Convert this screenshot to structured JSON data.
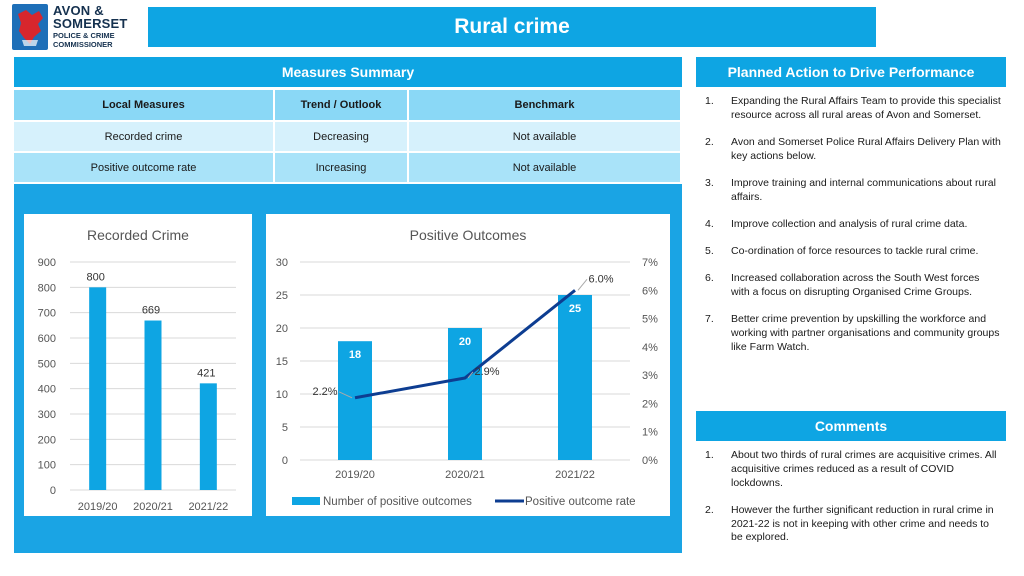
{
  "logo": {
    "line1": "AVON &",
    "line2": "SOMERSET",
    "line3": "POLICE & CRIME",
    "line4": "COMMISSIONER"
  },
  "page_title": "Rural crime",
  "measures": {
    "heading": "Measures Summary",
    "columns": [
      "Local Measures",
      "Trend / Outlook",
      "Benchmark"
    ],
    "rows": [
      [
        "Recorded crime",
        "Decreasing",
        "Not available"
      ],
      [
        "Positive outcome rate",
        "Increasing",
        "Not available"
      ]
    ]
  },
  "plan": {
    "heading": "Planned Action to Drive Performance",
    "items": [
      {
        "num": "1.",
        "text": "Expanding the Rural Affairs Team to provide this specialist resource across all rural areas of Avon and Somerset."
      },
      {
        "num": "2.",
        "text": "Avon and Somerset Police Rural Affairs Delivery Plan with key actions below."
      },
      {
        "num": "3.",
        "text": "Improve training and internal communications about rural affairs."
      },
      {
        "num": "4.",
        "text": "Improve collection and analysis of rural crime data."
      },
      {
        "num": "5.",
        "text": "Co-ordination of force resources to tackle rural crime."
      },
      {
        "num": "6.",
        "text": "Increased collaboration across the South West forces with a focus on disrupting Organised Crime Groups."
      },
      {
        "num": "7.",
        "text": "Better crime prevention by upskilling the workforce and working with partner organisations and community groups like Farm Watch."
      }
    ]
  },
  "comments": {
    "heading": "Comments",
    "items": [
      {
        "num": "1.",
        "text": "About two thirds of rural crimes are acquisitive crimes. All acquisitive crimes reduced as a result of COVID lockdowns."
      },
      {
        "num": "2.",
        "text": "However the further significant reduction in rural crime in 2021-22 is not in keeping with other crime and needs to be explored."
      }
    ]
  },
  "colors": {
    "accent": "#0ea5e3",
    "bar": "#0ea5e3",
    "line": "#0d3d91",
    "panel": "#1aa4e4"
  },
  "chart_data": [
    {
      "type": "bar",
      "title": "Recorded Crime",
      "categories": [
        "2019/20",
        "2020/21",
        "2021/22"
      ],
      "values": [
        800,
        669,
        421
      ],
      "value_labels": [
        "800",
        "669",
        "421"
      ],
      "ylim": [
        0,
        900
      ],
      "yticks": [
        "0",
        "100",
        "200",
        "300",
        "400",
        "500",
        "600",
        "700",
        "800",
        "900"
      ],
      "xlabel": "",
      "ylabel": "",
      "grid": true
    },
    {
      "type": "bar+line",
      "title": "Positive Outcomes",
      "categories": [
        "2019/20",
        "2020/21",
        "2021/22"
      ],
      "series": [
        {
          "name": "Number of positive outcomes",
          "type": "bar",
          "axis": "left",
          "values": [
            18,
            20,
            25
          ],
          "value_labels": [
            "18",
            "20",
            "25"
          ]
        },
        {
          "name": "Positive outcome rate",
          "type": "line",
          "axis": "right",
          "values": [
            2.2,
            2.9,
            6.0
          ],
          "value_labels": [
            "2.2%",
            "2.9%",
            "6.0%"
          ]
        }
      ],
      "ylim_left": [
        0,
        30
      ],
      "yticks_left": [
        "0",
        "5",
        "10",
        "15",
        "20",
        "25",
        "30"
      ],
      "ylim_right": [
        0,
        7
      ],
      "yticks_right": [
        "0%",
        "1%",
        "2%",
        "3%",
        "4%",
        "5%",
        "6%",
        "7%"
      ],
      "legend": "bottom",
      "grid": true
    }
  ]
}
